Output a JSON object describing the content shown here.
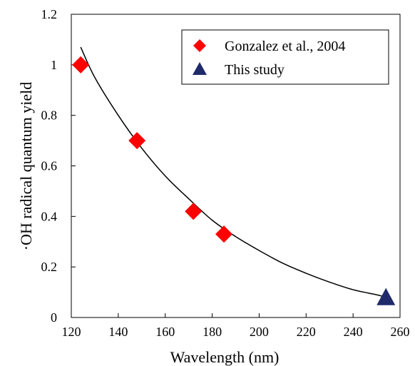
{
  "chart_data": {
    "type": "scatter",
    "title": "",
    "xlabel": "Wavelength (nm)",
    "ylabel": "·OH radical quantum yield",
    "xlim": [
      120,
      260
    ],
    "ylim": [
      0,
      1.2
    ],
    "xticks": [
      "120",
      "140",
      "160",
      "180",
      "200",
      "220",
      "240",
      "260"
    ],
    "yticks": [
      "0",
      "0.2",
      "0.4",
      "0.6",
      "0.8",
      "1",
      "1.2"
    ],
    "grid": false,
    "legend_position": "top-right",
    "series": [
      {
        "name": "Gonzalez et al., 2004",
        "marker": "diamond",
        "color": "#ff0000",
        "x": [
          124,
          148,
          172,
          185
        ],
        "y": [
          1.0,
          0.7,
          0.42,
          0.33
        ]
      },
      {
        "name": "This study",
        "marker": "triangle",
        "color": "#1f2a6b",
        "x": [
          254
        ],
        "y": [
          0.08
        ]
      }
    ],
    "trend_line": {
      "color": "#000000",
      "x": [
        124,
        130,
        140,
        150,
        160,
        170,
        180,
        190,
        200,
        210,
        220,
        230,
        240,
        250,
        254
      ],
      "y": [
        1.07,
        0.95,
        0.8,
        0.67,
        0.56,
        0.47,
        0.385,
        0.32,
        0.265,
        0.215,
        0.175,
        0.14,
        0.11,
        0.09,
        0.08
      ]
    }
  }
}
